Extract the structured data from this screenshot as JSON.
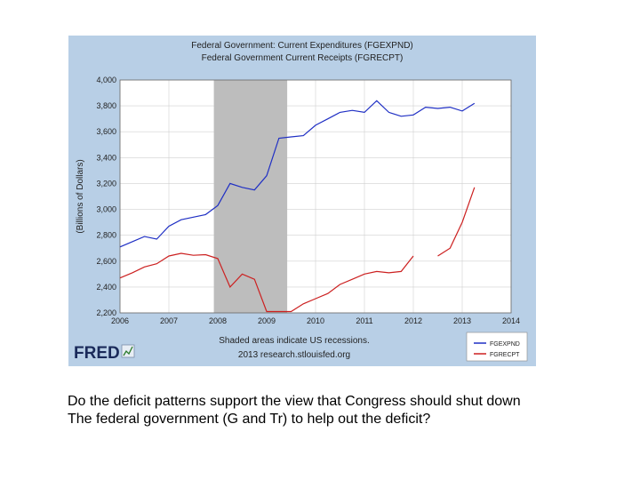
{
  "chart_data": {
    "type": "line",
    "title": "Federal Government: Current Expenditures (FGEXPND)",
    "subtitle": "Federal Government Current Receipts (FGRECPT)",
    "ylabel": "(Billions of Dollars)",
    "xlabel": "Shaded areas indicate US recessions.",
    "source_note": "2013 research.stlouisfed.org",
    "logo_text": "FRED",
    "xlim": [
      2006,
      2014
    ],
    "ylim": [
      2200,
      4000
    ],
    "x_ticks": [
      "2006",
      "2007",
      "2008",
      "2009",
      "2010",
      "2011",
      "2012",
      "2013",
      "2014"
    ],
    "y_ticks": [
      "4,000",
      "3,800",
      "3,600",
      "3,400",
      "3,200",
      "3,000",
      "2,800",
      "2,600",
      "2,400",
      "2,200"
    ],
    "grid": true,
    "legend_position": "bottom-right",
    "recession": [
      2007.92,
      2009.42
    ],
    "colors": {
      "panel": "#b8cfe6",
      "plot": "#ffffff",
      "grid": "#d0d0d0",
      "recession": "#bdbdbd",
      "expend": "#1f2fc4",
      "receipts": "#cc2020"
    },
    "series": [
      {
        "name": "FGEXPND",
        "color": "#1f2fc4",
        "points": [
          [
            2006.0,
            2710
          ],
          [
            2006.25,
            2750
          ],
          [
            2006.5,
            2790
          ],
          [
            2006.75,
            2770
          ],
          [
            2007.0,
            2870
          ],
          [
            2007.25,
            2920
          ],
          [
            2007.5,
            2940
          ],
          [
            2007.75,
            2960
          ],
          [
            2008.0,
            3030
          ],
          [
            2008.25,
            3200
          ],
          [
            2008.5,
            3170
          ],
          [
            2008.75,
            3150
          ],
          [
            2009.0,
            3260
          ],
          [
            2009.25,
            3550
          ],
          [
            2009.5,
            3560
          ],
          [
            2009.75,
            3570
          ],
          [
            2010.0,
            3650
          ],
          [
            2010.25,
            3700
          ],
          [
            2010.5,
            3750
          ],
          [
            2010.75,
            3765
          ],
          [
            2011.0,
            3750
          ],
          [
            2011.25,
            3840
          ],
          [
            2011.5,
            3750
          ],
          [
            2011.75,
            3720
          ],
          [
            2012.0,
            3730
          ],
          [
            2012.25,
            3790
          ],
          [
            2012.5,
            3780
          ],
          [
            2012.75,
            3790
          ],
          [
            2013.0,
            3760
          ],
          [
            2013.25,
            3820
          ]
        ]
      },
      {
        "name": "FGRECPT",
        "color": "#cc2020",
        "points": [
          [
            2006.0,
            2470
          ],
          [
            2006.25,
            2510
          ],
          [
            2006.5,
            2555
          ],
          [
            2006.75,
            2580
          ],
          [
            2007.0,
            2640
          ],
          [
            2007.25,
            2660
          ],
          [
            2007.5,
            2645
          ],
          [
            2007.75,
            2650
          ],
          [
            2008.0,
            2620
          ],
          [
            2008.25,
            2400
          ],
          [
            2008.5,
            2500
          ],
          [
            2008.75,
            2460
          ],
          [
            2009.0,
            2210
          ],
          [
            2009.25,
            2210
          ],
          [
            2009.5,
            2210
          ],
          [
            2009.75,
            2270
          ],
          [
            2010.0,
            2310
          ],
          [
            2010.25,
            2350
          ],
          [
            2010.5,
            2420
          ],
          [
            2010.75,
            2460
          ],
          [
            2011.0,
            2500
          ],
          [
            2011.25,
            2520
          ],
          [
            2011.5,
            2510
          ],
          [
            2011.75,
            2520
          ],
          [
            2012.0,
            2640
          ],
          null,
          [
            2012.5,
            2640
          ],
          [
            2012.75,
            2700
          ],
          [
            2013.0,
            2900
          ],
          [
            2013.25,
            3170
          ]
        ]
      }
    ]
  },
  "question": {
    "line1": "Do the deficit patterns support the view that Congress should shut down",
    "line2": "The federal government (G and Tr) to help out the deficit?"
  }
}
